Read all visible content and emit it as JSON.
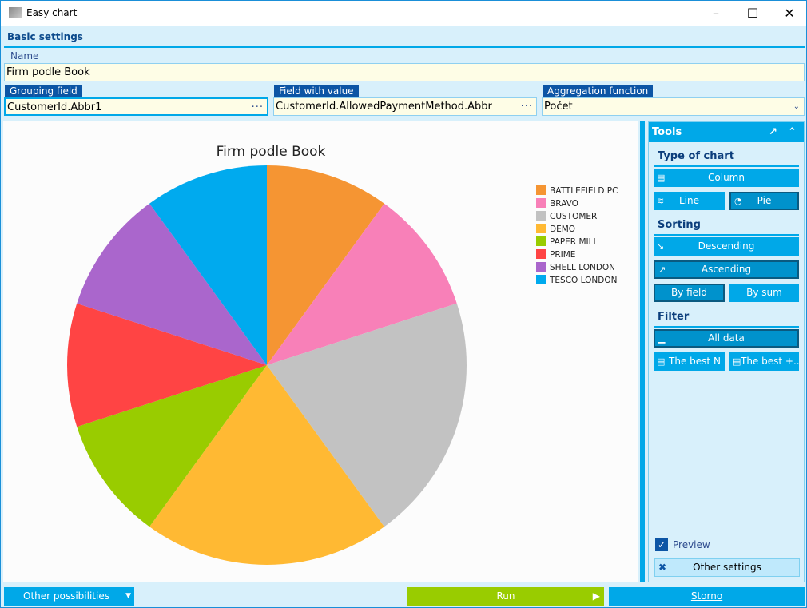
{
  "window": {
    "title": "Easy chart",
    "icon_text": "K2"
  },
  "basic": {
    "title": "Basic settings",
    "name_label": "Name",
    "name_value": "Firm podle Book",
    "grouping_label": "Grouping field",
    "grouping_value": "CustomerId.Abbr1",
    "value_label": "Field with value",
    "value_value": "CustomerId.AllowedPaymentMethod.Abbr",
    "agg_label": "Aggregation function",
    "agg_value": "Počet"
  },
  "tools": {
    "title": "Tools",
    "type_title": "Type of chart",
    "column": "Column",
    "line": "Line",
    "pie": "Pie",
    "sorting_title": "Sorting",
    "descending": "Descending",
    "ascending": "Ascending",
    "by_field": "By field",
    "by_sum": "By sum",
    "filter_title": "Filter",
    "all_data": "All data",
    "best_n": "The best N",
    "best_plus": "The best +...",
    "preview": "Preview",
    "preview_checked": true,
    "other_settings": "Other settings",
    "selected": [
      "Pie",
      "Ascending",
      "By field",
      "All data"
    ]
  },
  "footer": {
    "other": "Other possibilities",
    "run": "Run",
    "storno": "Storno"
  },
  "chart_data": {
    "type": "pie",
    "title": "Firm podle Book",
    "legend_position": "right",
    "categories": [
      "BATTLEFIELD PC",
      "BRAVO",
      "CUSTOMER",
      "DEMO",
      "PAPER MILL",
      "PRIME",
      "SHELL LONDON",
      "TESCO LONDON"
    ],
    "values": [
      1,
      1,
      2,
      2,
      1,
      1,
      1,
      1
    ],
    "colors": [
      "#f59533",
      "#f880b8",
      "#c2c2c2",
      "#ffb933",
      "#99cc00",
      "#ff4444",
      "#aa66cc",
      "#00aaee"
    ]
  }
}
